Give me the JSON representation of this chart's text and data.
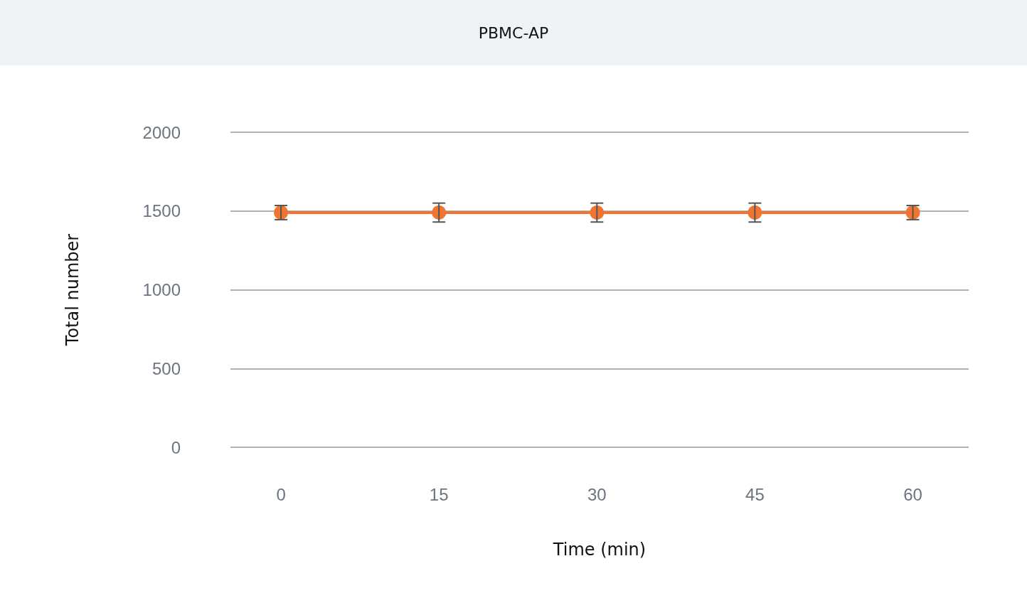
{
  "chart_data": {
    "type": "line",
    "title": "PBMC-AP",
    "xlabel": "Time (min)",
    "ylabel": "Total number",
    "x": [
      0,
      15,
      30,
      45,
      60
    ],
    "series": [
      {
        "color": "#f07530",
        "values": [
          1490,
          1490,
          1490,
          1490,
          1490
        ],
        "errors": [
          45,
          60,
          60,
          60,
          45
        ]
      }
    ],
    "xlim": [
      -4.8,
      65.3
    ],
    "xticks": [
      0,
      15,
      30,
      45,
      60
    ],
    "ylim": [
      0,
      2000
    ],
    "yticks": [
      0,
      500,
      1000,
      1500,
      2000
    ],
    "grid": "y",
    "marker": "circle",
    "line_style": "solid"
  }
}
